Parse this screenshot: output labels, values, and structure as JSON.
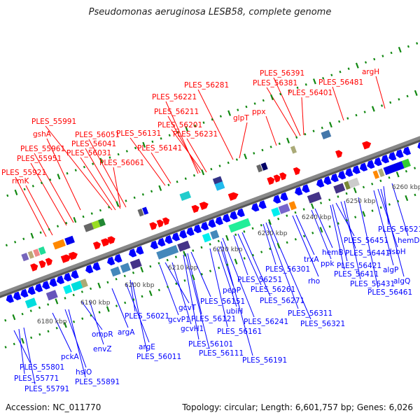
{
  "title": "Pseudomonas aeruginosa LESB58, complete genome",
  "footer": {
    "accession": "Accession: NC_011770",
    "summary": "Topology: circular; Length: 6,601,757 bp; Genes: 6,026"
  },
  "colors": {
    "forward": "#ff0000",
    "reverse": "#0000ff",
    "backbone": "#888888",
    "tick": "#118811"
  },
  "kbp_labels": [
    "6180 kbp",
    "6190 kbp",
    "6200 kbp",
    "6210 kbp",
    "6220 kbp",
    "6230 kbp",
    "6240 kbp",
    "6250 kbp",
    "6260 kbp"
  ],
  "forward_genes": [
    "PLES_55991",
    "gshA",
    "PLES_55961",
    "PLES_55951",
    "PLES_55921",
    "rimK",
    "PLES_56051",
    "PLES_56041",
    "PLES_56031",
    "PLES_56061",
    "PLES_56131",
    "PLES_56141",
    "PLES_56221",
    "PLES_56211",
    "PLES_56201",
    "PLES_56231",
    "PLES_56281",
    "glpT",
    "ppx",
    "PLES_56391",
    "PLES_56381",
    "PLES_56401",
    "PLES_56481",
    "argH"
  ],
  "reverse_genes": [
    "PLES_55801",
    "PLES_55771",
    "PLES_55791",
    "pckA",
    "hslO",
    "PLES_55891",
    "ompR",
    "envZ",
    "argA",
    "PLES_56021",
    "argE",
    "PLES_56011",
    "gcvT",
    "gcvP1",
    "gcvH1",
    "PLES_56151",
    "pepP",
    "ubiH",
    "PLES_56121",
    "PLES_56101",
    "PLES_56111",
    "PLES_56161",
    "PLES_56241",
    "PLES_56251",
    "PLES_56261",
    "PLES_56271",
    "PLES_56191",
    "PLES_56301",
    "PLES_56311",
    "PLES_56321",
    "rho",
    "trxA",
    "hemB",
    "ppk",
    "PLES_56451",
    "PLES_56441",
    "PLES_56421",
    "PLES_56411",
    "PLES_56431",
    "PLES_56461",
    "PLES_56521",
    "hemD",
    "dsbH",
    "algP",
    "algQ"
  ]
}
